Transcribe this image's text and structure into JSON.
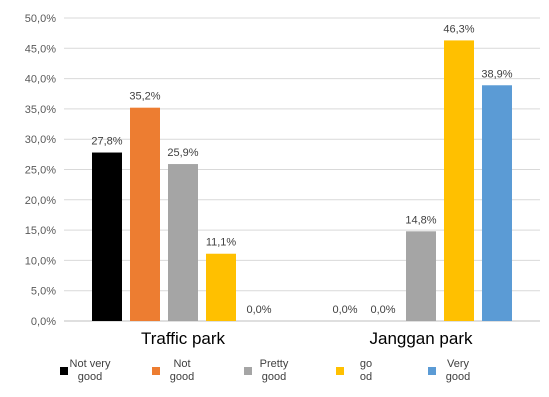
{
  "chart_data": {
    "type": "bar",
    "categories": [
      "Traffic park",
      "Janggan park"
    ],
    "series": [
      {
        "name": "Not very good",
        "color": "#000000",
        "values": [
          27.8,
          0.0
        ],
        "labels": [
          "27,8%",
          "0,0%"
        ]
      },
      {
        "name": "Not good",
        "color": "#ED7D31",
        "values": [
          35.2,
          0.0
        ],
        "labels": [
          "35,2%",
          "0,0%"
        ]
      },
      {
        "name": "Pretty good",
        "color": "#A5A5A5",
        "values": [
          25.9,
          14.8
        ],
        "labels": [
          "25,9%",
          "14,8%"
        ]
      },
      {
        "name": "go od",
        "color": "#FFC000",
        "values": [
          11.1,
          46.3
        ],
        "labels": [
          "11,1%",
          "46,3%"
        ]
      },
      {
        "name": "Very good",
        "color": "#5B9BD5",
        "values": [
          0.0,
          38.9
        ],
        "labels": [
          "0,0%",
          "38,9%"
        ]
      }
    ],
    "y_ticks": [
      "0,0%",
      "5,0%",
      "10,0%",
      "15,0%",
      "20,0%",
      "25,0%",
      "30,0%",
      "35,0%",
      "40,0%",
      "45,0%",
      "50,0%"
    ],
    "ylim": [
      0,
      50
    ],
    "ytick_step": 5,
    "grid": true,
    "legend_position": "bottom",
    "title": "",
    "xlabel": "",
    "ylabel": ""
  }
}
